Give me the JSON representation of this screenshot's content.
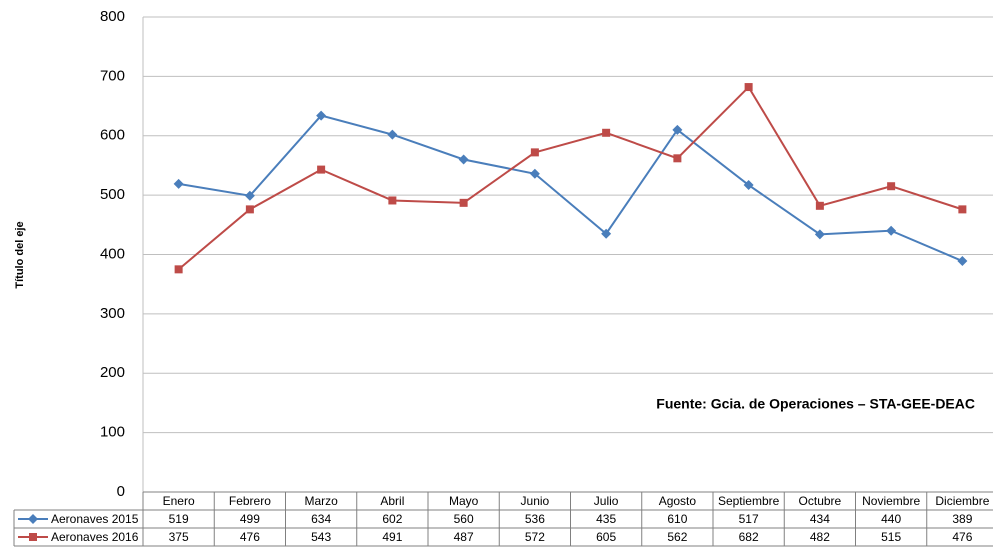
{
  "chart_data": {
    "type": "line",
    "y_label": "Título del eje",
    "annotation": "Fuente: Gcia. de Operaciones – STA-GEE-DEAC",
    "categories": [
      "Enero",
      "Febrero",
      "Marzo",
      "Abril",
      "Mayo",
      "Junio",
      "Julio",
      "Agosto",
      "Septiembre",
      "Octubre",
      "Noviembre",
      "Diciembre"
    ],
    "series": [
      {
        "name": "Aeronaves 2015",
        "color": "#4a7ebb",
        "marker": "diamond",
        "values": [
          519,
          499,
          634,
          602,
          560,
          536,
          435,
          610,
          517,
          434,
          440,
          389
        ]
      },
      {
        "name": "Aeronaves 2016",
        "color": "#be4b48",
        "marker": "square",
        "values": [
          375,
          476,
          543,
          491,
          487,
          572,
          605,
          562,
          682,
          482,
          515,
          476
        ]
      }
    ],
    "ylim": [
      0,
      800
    ],
    "yticks": [
      0,
      100,
      200,
      300,
      400,
      500,
      600,
      700,
      800
    ],
    "grid": true,
    "data_table": true
  }
}
